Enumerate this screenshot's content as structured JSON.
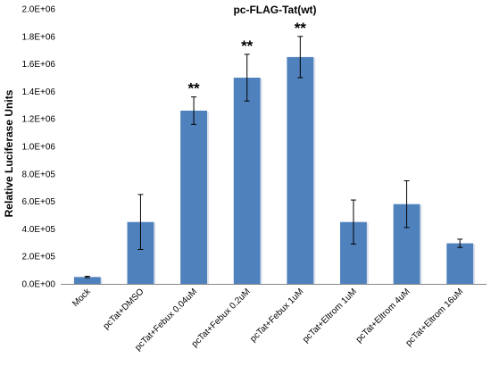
{
  "chart_data": {
    "type": "bar",
    "title": "pc-FLAG-Tat(wt)",
    "xlabel": "",
    "ylabel": "Relative Luciferase Units",
    "ylim": [
      0,
      2000000
    ],
    "yticks": [
      0,
      200000,
      400000,
      600000,
      800000,
      1000000,
      1200000,
      1400000,
      1600000,
      1800000,
      2000000
    ],
    "ytick_labels": [
      "0.0E+00",
      "2.0E+05",
      "4.0E+05",
      "6.0E+05",
      "8.0E+05",
      "1.0E+06",
      "1.2E+06",
      "1.4E+06",
      "1.6E+06",
      "1.8E+06",
      "2.0E+06"
    ],
    "categories": [
      "Mock",
      "pcTat+DMSO",
      "pcTat+Febux 0.04uM",
      "pcTat+Febux 0.2uM",
      "pcTat+Febux 1uM",
      "pcTat+Eltrom 1uM",
      "pcTat+Eltrom 4uM",
      "pcTat+Eltrom 16uM"
    ],
    "values": [
      50000,
      450000,
      1260000,
      1500000,
      1650000,
      450000,
      580000,
      295000
    ],
    "errors": [
      5000,
      200000,
      100000,
      170000,
      150000,
      160000,
      170000,
      30000
    ],
    "significance": [
      "",
      "",
      "**",
      "**",
      "**",
      "",
      "",
      ""
    ],
    "grid": false,
    "legend": "none",
    "bar_color": "#4f81bd"
  }
}
